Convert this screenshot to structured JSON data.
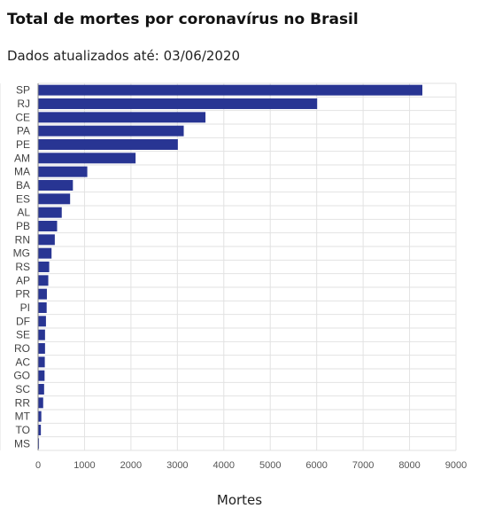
{
  "chart_data": {
    "type": "bar",
    "orientation": "horizontal",
    "title": "Total de mortes por coronavírus no Brasil",
    "subtitle": "Dados atualizados até: 03/06/2020",
    "xlabel": "Mortes",
    "ylabel": "",
    "xlim": [
      0,
      9000
    ],
    "xticks": [
      0,
      1000,
      2000,
      3000,
      4000,
      5000,
      6000,
      7000,
      8000,
      9000
    ],
    "grid": true,
    "bar_color": "#283593",
    "categories": [
      "SP",
      "RJ",
      "CE",
      "PA",
      "PE",
      "AM",
      "MA",
      "BA",
      "ES",
      "AL",
      "PB",
      "RN",
      "MG",
      "RS",
      "AP",
      "PR",
      "PI",
      "DF",
      "SE",
      "RO",
      "AC",
      "GO",
      "SC",
      "RR",
      "MT",
      "TO",
      "MS"
    ],
    "values": [
      8276,
      6010,
      3605,
      3137,
      3010,
      2100,
      1060,
      750,
      690,
      510,
      410,
      360,
      290,
      240,
      220,
      190,
      185,
      170,
      150,
      150,
      145,
      140,
      130,
      110,
      70,
      60,
      20
    ]
  }
}
